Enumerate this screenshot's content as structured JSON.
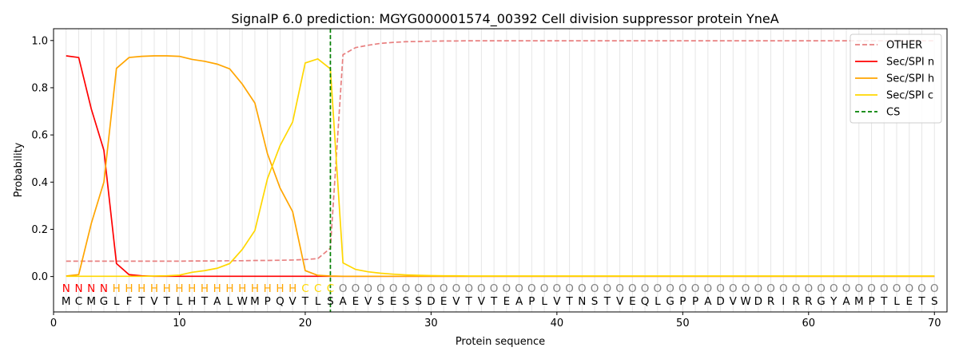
{
  "chart_data": {
    "type": "line",
    "title": "SignalP 6.0 prediction: MGYG000001574_00392 Cell division suppressor protein YneA",
    "xlabel": "Protein sequence",
    "ylabel": "Probability",
    "xlim": [
      0,
      71
    ],
    "ylim": [
      -0.15,
      1.05
    ],
    "xticks": [
      0,
      10,
      20,
      30,
      40,
      50,
      60,
      70
    ],
    "yticks": [
      0.0,
      0.2,
      0.4,
      0.6,
      0.8,
      1.0
    ],
    "grid": "vertical lines at each residue position",
    "legend_position": "top-right",
    "sequence": [
      "M",
      "C",
      "M",
      "G",
      "L",
      "F",
      "T",
      "V",
      "T",
      "L",
      "H",
      "T",
      "A",
      "L",
      "W",
      "M",
      "P",
      "Q",
      "V",
      "T",
      "L",
      "S",
      "A",
      "E",
      "V",
      "S",
      "E",
      "S",
      "S",
      "D",
      "E",
      "V",
      "T",
      "V",
      "T",
      "E",
      "A",
      "P",
      "L",
      "V",
      "T",
      "N",
      "S",
      "T",
      "V",
      "E",
      "Q",
      "L",
      "G",
      "P",
      "P",
      "A",
      "D",
      "V",
      "W",
      "D",
      "R",
      "I",
      "R",
      "R",
      "G",
      "Y",
      "A",
      "M",
      "P",
      "T",
      "L",
      "E",
      "T",
      "S"
    ],
    "labels": [
      "N",
      "N",
      "N",
      "N",
      "H",
      "H",
      "H",
      "H",
      "H",
      "H",
      "H",
      "H",
      "H",
      "H",
      "H",
      "H",
      "H",
      "H",
      "H",
      "C",
      "C",
      "C",
      "O",
      "O",
      "O",
      "O",
      "O",
      "O",
      "O",
      "O",
      "O",
      "O",
      "O",
      "O",
      "O",
      "O",
      "O",
      "O",
      "O",
      "O",
      "O",
      "O",
      "O",
      "O",
      "O",
      "O",
      "O",
      "O",
      "O",
      "O",
      "O",
      "O",
      "O",
      "O",
      "O",
      "O",
      "O",
      "O",
      "O",
      "O",
      "O",
      "O",
      "O",
      "O",
      "O",
      "O",
      "O",
      "O",
      "O",
      "O"
    ],
    "label_colors": {
      "N": "#ff0000",
      "H": "#ffa500",
      "C": "#ffd700",
      "O": "#808080"
    },
    "cs_position": 22,
    "series": [
      {
        "name": "OTHER",
        "color": "#e88080",
        "dash": "dashed",
        "values": [
          0.065,
          0.065,
          0.065,
          0.065,
          0.065,
          0.065,
          0.065,
          0.065,
          0.065,
          0.065,
          0.066,
          0.066,
          0.066,
          0.067,
          0.067,
          0.068,
          0.068,
          0.069,
          0.07,
          0.072,
          0.076,
          0.12,
          0.94,
          0.97,
          0.98,
          0.988,
          0.992,
          0.995,
          0.996,
          0.997,
          0.998,
          0.998,
          0.999,
          0.999,
          0.999,
          0.999,
          0.999,
          0.999,
          0.999,
          0.999,
          0.999,
          0.999,
          0.999,
          0.999,
          0.999,
          0.999,
          0.999,
          0.999,
          0.999,
          0.999,
          0.999,
          0.999,
          0.999,
          0.999,
          0.999,
          0.999,
          0.999,
          0.999,
          0.999,
          0.999,
          0.999,
          0.999,
          0.999,
          0.999,
          0.999,
          0.999,
          0.999,
          0.999,
          0.999,
          0.999
        ]
      },
      {
        "name": "Sec/SPI n",
        "color": "#ff0000",
        "dash": "solid",
        "values": [
          0.935,
          0.928,
          0.71,
          0.535,
          0.055,
          0.008,
          0.003,
          0.001,
          0.001,
          0.001,
          0.001,
          0.001,
          0.001,
          0.001,
          0.001,
          0.001,
          0.001,
          0.001,
          0.001,
          0.001,
          0.001,
          0.001,
          0.001,
          0.001,
          0.001,
          0.001,
          0.001,
          0.001,
          0.001,
          0.001,
          0.001,
          0.001,
          0.001,
          0.001,
          0.001,
          0.001,
          0.001,
          0.001,
          0.001,
          0.001,
          0.001,
          0.001,
          0.001,
          0.001,
          0.001,
          0.001,
          0.001,
          0.001,
          0.001,
          0.001,
          0.001,
          0.001,
          0.001,
          0.001,
          0.001,
          0.001,
          0.001,
          0.001,
          0.001,
          0.001,
          0.001,
          0.001,
          0.001,
          0.001,
          0.001,
          0.001,
          0.001,
          0.001,
          0.001,
          0.001
        ]
      },
      {
        "name": "Sec/SPI h",
        "color": "#ffa500",
        "dash": "solid",
        "values": [
          0.002,
          0.008,
          0.225,
          0.4,
          0.882,
          0.928,
          0.933,
          0.935,
          0.935,
          0.933,
          0.92,
          0.912,
          0.9,
          0.88,
          0.815,
          0.735,
          0.52,
          0.375,
          0.275,
          0.025,
          0.005,
          0.002,
          0.001,
          0.001,
          0.001,
          0.001,
          0.001,
          0.001,
          0.001,
          0.001,
          0.001,
          0.001,
          0.001,
          0.001,
          0.001,
          0.001,
          0.001,
          0.001,
          0.001,
          0.001,
          0.001,
          0.001,
          0.001,
          0.001,
          0.001,
          0.001,
          0.001,
          0.001,
          0.001,
          0.001,
          0.001,
          0.001,
          0.001,
          0.001,
          0.001,
          0.001,
          0.001,
          0.001,
          0.001,
          0.001,
          0.001,
          0.001,
          0.001,
          0.001,
          0.001,
          0.001,
          0.001,
          0.001,
          0.001,
          0.001
        ]
      },
      {
        "name": "Sec/SPI c",
        "color": "#ffd700",
        "dash": "solid",
        "values": [
          0.001,
          0.001,
          0.001,
          0.001,
          0.001,
          0.001,
          0.001,
          0.002,
          0.003,
          0.006,
          0.018,
          0.025,
          0.035,
          0.055,
          0.115,
          0.195,
          0.415,
          0.555,
          0.655,
          0.905,
          0.922,
          0.88,
          0.058,
          0.03,
          0.02,
          0.014,
          0.01,
          0.007,
          0.005,
          0.004,
          0.003,
          0.003,
          0.002,
          0.002,
          0.002,
          0.002,
          0.002,
          0.002,
          0.002,
          0.002,
          0.002,
          0.002,
          0.002,
          0.002,
          0.002,
          0.002,
          0.002,
          0.002,
          0.002,
          0.002,
          0.002,
          0.002,
          0.002,
          0.002,
          0.002,
          0.002,
          0.002,
          0.002,
          0.002,
          0.002,
          0.002,
          0.002,
          0.002,
          0.002,
          0.002,
          0.002,
          0.002,
          0.002,
          0.002,
          0.002
        ]
      }
    ],
    "legend": [
      "OTHER",
      "Sec/SPI n",
      "Sec/SPI h",
      "Sec/SPI c",
      "CS"
    ],
    "cs_color": "#008000"
  }
}
